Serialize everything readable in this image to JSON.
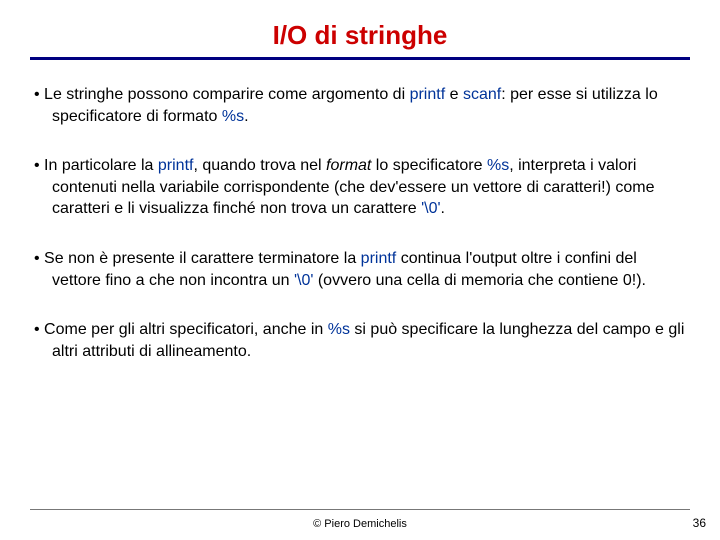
{
  "title": {
    "text": "I/O di stringhe",
    "color": "#cc0000",
    "fontsize": 26
  },
  "rule_color": "#000080",
  "keyword_color": "#003399",
  "bullets": [
    {
      "segments": [
        {
          "t": "Le stringhe possono comparire come argomento di "
        },
        {
          "t": "printf",
          "kw": true
        },
        {
          "t": " e "
        },
        {
          "t": "scanf",
          "kw": true
        },
        {
          "t": ": per esse si utilizza lo specificatore di formato "
        },
        {
          "t": "%s",
          "kw": true
        },
        {
          "t": "."
        }
      ]
    },
    {
      "segments": [
        {
          "t": "In particolare la "
        },
        {
          "t": "printf",
          "kw": true
        },
        {
          "t": ", quando trova nel "
        },
        {
          "t": "format",
          "italic": true
        },
        {
          "t": "  lo specificatore "
        },
        {
          "t": "%s",
          "kw": true
        },
        {
          "t": ", interpreta i valori contenuti nella variabile corrispondente (che dev'essere un vettore di caratteri!) come caratteri e li visualizza finché non trova un carattere "
        },
        {
          "t": "'\\0'",
          "kw": true
        },
        {
          "t": "."
        }
      ]
    },
    {
      "segments": [
        {
          "t": "Se non è presente il carattere terminatore la "
        },
        {
          "t": "printf",
          "kw": true
        },
        {
          "t": " continua l'output oltre i confini del vettore fino a che non incontra un "
        },
        {
          "t": "'\\0'",
          "kw": true
        },
        {
          "t": " (ovvero una cella di memoria che contiene 0!)."
        }
      ]
    },
    {
      "segments": [
        {
          "t": "Come per gli altri specificatori, anche in "
        },
        {
          "t": "%s",
          "kw": true
        },
        {
          "t": " si può specificare la lunghezza del campo e gli altri attributi di allineamento."
        }
      ]
    }
  ],
  "footer": {
    "copyright": "© Piero Demichelis",
    "page": "36"
  }
}
